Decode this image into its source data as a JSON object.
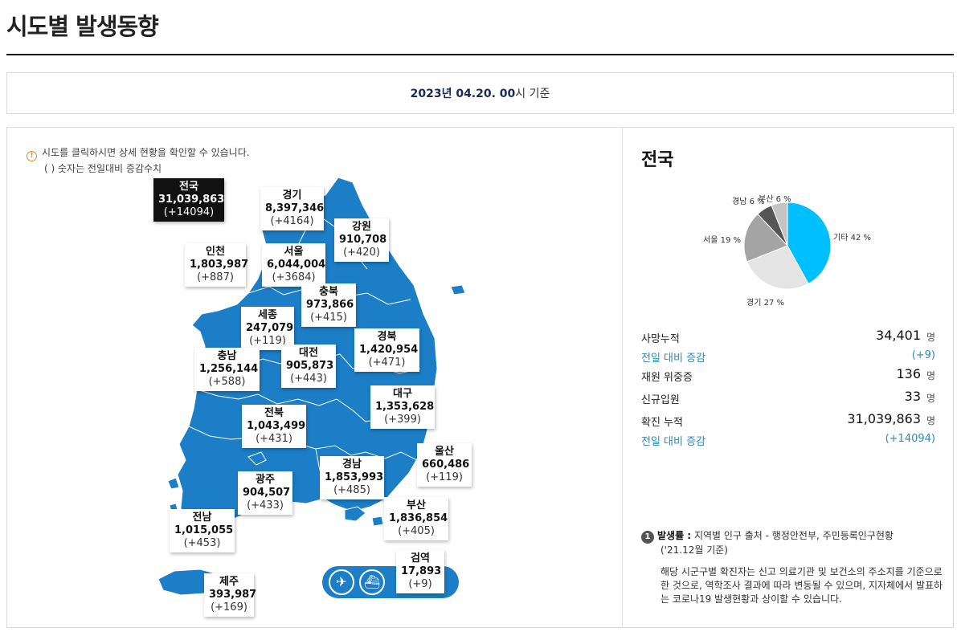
{
  "page": {
    "title": "시도별 발생동향",
    "date_bold": "2023년 04.20. 00",
    "date_suffix": "시 기준"
  },
  "notice": {
    "line1": "시도를 클릭하시면 상세 현황을 확인할 수 있습니다.",
    "line2": "( ) 숫자는 전일대비 증감수치"
  },
  "regions": {
    "national": {
      "name": "전국",
      "value": "31,039,863",
      "delta": "(+14094)"
    },
    "gyeonggi": {
      "name": "경기",
      "value": "8,397,346",
      "delta": "(+4164)"
    },
    "gangwon": {
      "name": "강원",
      "value": "910,708",
      "delta": "(+420)"
    },
    "incheon": {
      "name": "인천",
      "value": "1,803,987",
      "delta": "(+887)"
    },
    "seoul": {
      "name": "서울",
      "value": "6,044,004",
      "delta": "(+3684)"
    },
    "chungbuk": {
      "name": "충북",
      "value": "973,866",
      "delta": "(+415)"
    },
    "sejong": {
      "name": "세종",
      "value": "247,079",
      "delta": "(+119)"
    },
    "gyeongbuk": {
      "name": "경북",
      "value": "1,420,954",
      "delta": "(+471)"
    },
    "chungnam": {
      "name": "충남",
      "value": "1,256,144",
      "delta": "(+588)"
    },
    "daejeon": {
      "name": "대전",
      "value": "905,873",
      "delta": "(+443)"
    },
    "daegu": {
      "name": "대구",
      "value": "1,353,628",
      "delta": "(+399)"
    },
    "jeonbuk": {
      "name": "전북",
      "value": "1,043,499",
      "delta": "(+431)"
    },
    "ulsan": {
      "name": "울산",
      "value": "660,486",
      "delta": "(+119)"
    },
    "gyeongnam": {
      "name": "경남",
      "value": "1,853,993",
      "delta": "(+485)"
    },
    "gwangju": {
      "name": "광주",
      "value": "904,507",
      "delta": "(+433)"
    },
    "busan": {
      "name": "부산",
      "value": "1,836,854",
      "delta": "(+405)"
    },
    "jeonnam": {
      "name": "전남",
      "value": "1,015,055",
      "delta": "(+453)"
    },
    "quarantine": {
      "name": "검역",
      "value": "17,893",
      "delta": "(+9)"
    },
    "jeju": {
      "name": "제주",
      "value": "393,987",
      "delta": "(+169)"
    }
  },
  "icons": {
    "airplane": "airplane-icon",
    "ship": "ship-icon",
    "info": "info-icon"
  },
  "side": {
    "title": "전국",
    "pie": {
      "slices": [
        {
          "label": "기타 42 %",
          "percent": 42,
          "color": "#00bfff"
        },
        {
          "label": "경기 27 %",
          "percent": 27,
          "color": "#e4e4e4"
        },
        {
          "label": "서울 19 %",
          "percent": 19,
          "color": "#a4a4a4"
        },
        {
          "label": "경남 6 %",
          "percent": 6,
          "color": "#555555"
        },
        {
          "label": "부산 6 %",
          "percent": 6,
          "color": "#c4c4c4"
        }
      ]
    },
    "stats": [
      {
        "label": "사망누적",
        "value": "34,401",
        "unit": "명"
      },
      {
        "label": "전일 대비 증감",
        "value": "(+9)",
        "unit": "",
        "sub": true
      },
      {
        "label": "재원 위중증",
        "value": "136",
        "unit": "명"
      },
      {
        "label": "신규입원",
        "value": "33",
        "unit": "명"
      },
      {
        "label": "확진 누적",
        "value": "31,039,863",
        "unit": "명"
      },
      {
        "label": "전일 대비 증감",
        "value": "(+14094)",
        "unit": "",
        "sub": true
      }
    ],
    "note": {
      "number": "1",
      "title": "발생률 :",
      "source": "지역별 인구 출처 - 행정안전부, 주민등록인구현황",
      "source2": "('21.12월 기준)",
      "body": "해당 시군구별 확진자는 신고 의료기관 및 보건소의 주소지를 기준으로 한 것으로, 역학조사 결과에 따라 변동될 수 있으며, 지자체에서 발표하는 코로나19 발생현황과 상이할 수 있습니다."
    }
  }
}
